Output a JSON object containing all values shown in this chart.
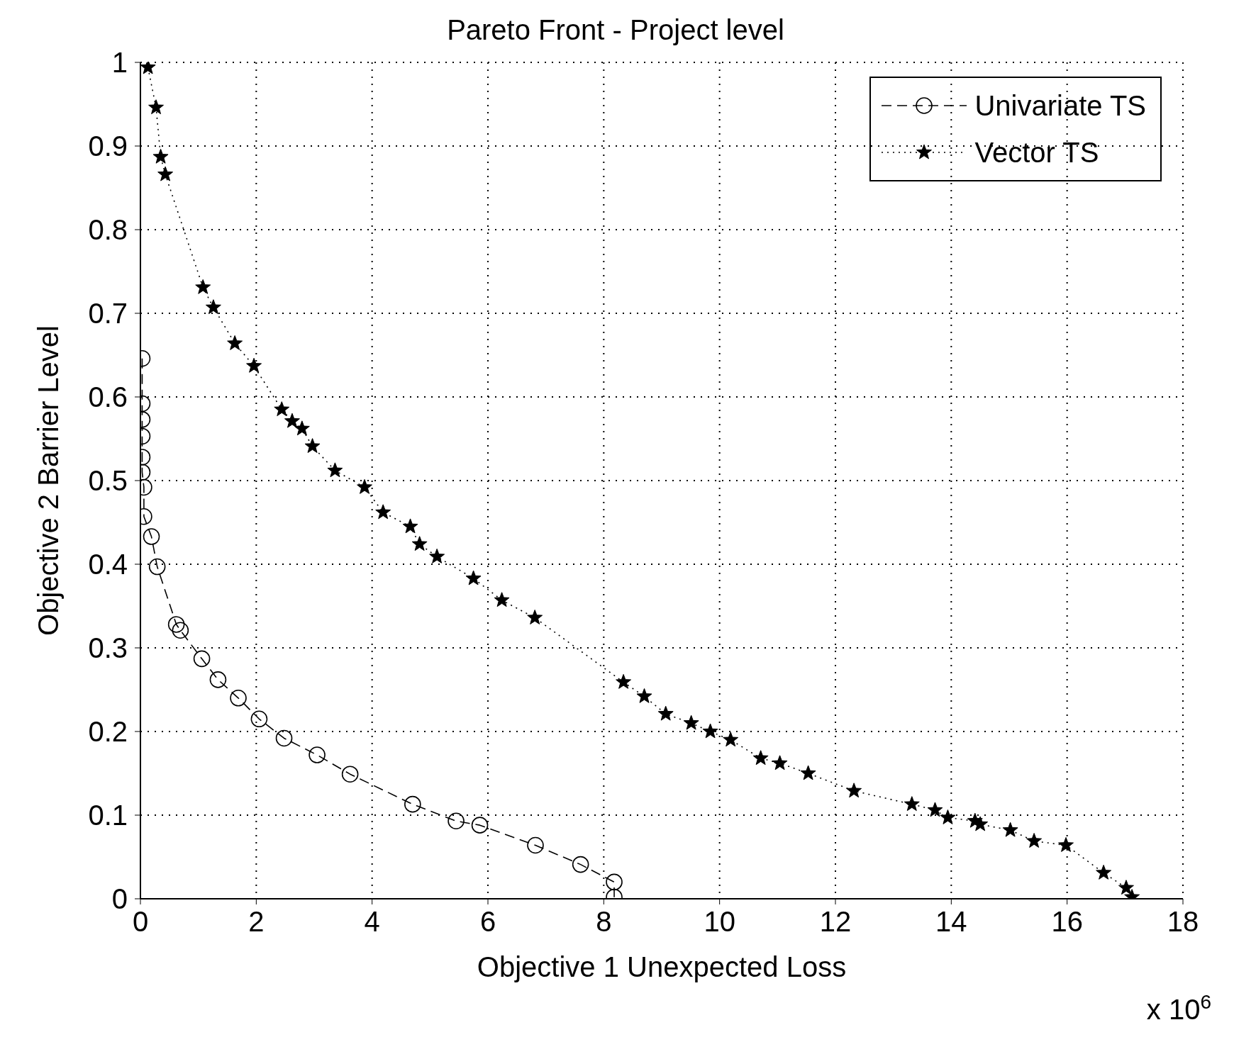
{
  "chart_data": {
    "type": "line",
    "title": "Pareto Front - Project level",
    "xlabel": "Objective 1 Unexpected Loss",
    "ylabel": "Objective 2 Barrier Level",
    "annotations": [
      "x 10$^{6}$"
    ],
    "xlim": [
      0,
      18
    ],
    "xticks": [
      0,
      2,
      4,
      6,
      8,
      10,
      12,
      14,
      16,
      18
    ],
    "ylim": [
      0,
      1
    ],
    "yticks": [
      0,
      0.1,
      0.2,
      0.3,
      0.4,
      0.5,
      0.6,
      0.7,
      0.8,
      0.9,
      1
    ],
    "grid": true,
    "legend": "top right",
    "series": [
      {
        "name": "Univariate TS",
        "color": "#000000",
        "marker": "circle",
        "line_style": "dashed",
        "x": [
          0.03,
          0.03,
          0.03,
          0.03,
          0.03,
          0.03,
          0.06,
          0.06,
          0.19,
          0.29,
          0.62,
          0.69,
          1.06,
          1.34,
          1.69,
          2.05,
          2.48,
          3.05,
          3.62,
          4.7,
          5.45,
          5.86,
          6.82,
          7.6,
          8.18,
          8.18
        ],
        "values": [
          0.646,
          0.592,
          0.573,
          0.553,
          0.528,
          0.51,
          0.492,
          0.457,
          0.433,
          0.397,
          0.328,
          0.321,
          0.287,
          0.262,
          0.24,
          0.215,
          0.192,
          0.172,
          0.149,
          0.113,
          0.093,
          0.088,
          0.064,
          0.041,
          0.02,
          0.002
        ]
      },
      {
        "name": "Vector TS",
        "color": "#000000",
        "marker": "star",
        "line_style": "dotted",
        "x": [
          0.13,
          0.27,
          0.35,
          0.43,
          1.08,
          1.26,
          1.63,
          1.96,
          2.44,
          2.62,
          2.79,
          2.97,
          3.36,
          3.87,
          4.19,
          4.66,
          4.82,
          5.12,
          5.75,
          6.24,
          6.81,
          8.34,
          8.7,
          9.07,
          9.51,
          9.84,
          10.19,
          10.71,
          11.04,
          11.53,
          12.32,
          13.32,
          13.72,
          13.94,
          14.41,
          14.5,
          15.02,
          15.43,
          15.98,
          16.63,
          17.02,
          17.12
        ],
        "values": [
          0.994,
          0.946,
          0.887,
          0.866,
          0.731,
          0.707,
          0.664,
          0.637,
          0.585,
          0.571,
          0.562,
          0.541,
          0.512,
          0.492,
          0.462,
          0.445,
          0.424,
          0.409,
          0.383,
          0.357,
          0.336,
          0.259,
          0.242,
          0.221,
          0.21,
          0.2,
          0.19,
          0.168,
          0.162,
          0.15,
          0.129,
          0.113,
          0.106,
          0.097,
          0.093,
          0.089,
          0.082,
          0.069,
          0.064,
          0.031,
          0.013,
          0.002
        ]
      }
    ]
  }
}
